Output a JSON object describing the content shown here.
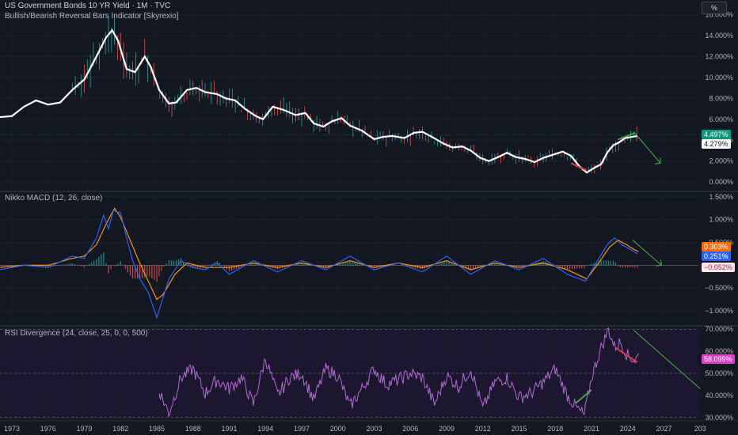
{
  "header": {
    "title": "US Government Bonds 10 YR Yield · 1M · TVC",
    "indicator": "Bullish/Bearish Reversal Bars Indicator [Skyrexio]",
    "scale_button": "%"
  },
  "x_axis": {
    "years": [
      "1973",
      "1976",
      "1979",
      "1982",
      "1985",
      "1988",
      "1991",
      "1994",
      "1997",
      "2000",
      "2003",
      "2006",
      "2009",
      "2012",
      "2015",
      "2018",
      "2021",
      "2024",
      "2027",
      "203"
    ]
  },
  "colors": {
    "background": "#131722",
    "separator": "#2a4a3a",
    "up": "#26a69a",
    "down": "#ef5350",
    "smooth_line": "#ffffff",
    "macd": "#2962ff",
    "signal": "#ff9800",
    "rsi": "#b36bd6",
    "green_trend": "#4caf50",
    "red_trend": "#f23645"
  },
  "chart_data": [
    {
      "type": "line",
      "title": "US Government Bonds 10 YR Yield · 1M · TVC",
      "subtitle": "Bullish/Bearish Reversal Bars Indicator [Skyrexio]",
      "unit": "%",
      "y_ticks": [
        "16.000%",
        "14.000%",
        "12.000%",
        "10.000%",
        "8.000%",
        "6.000%",
        "4.000%",
        "2.000%",
        "0.000%"
      ],
      "ylim": [
        -0.9,
        17.4
      ],
      "series": [
        {
          "x": [
            1972.0,
            1973.0,
            1974.0,
            1975.0,
            1976.0,
            1977.0,
            1978.0,
            1979.0,
            1980.0,
            1980.8,
            1981.3,
            1981.8,
            1982.5,
            1983.2,
            1984.0,
            1984.5,
            1985.2,
            1986.0,
            1986.6,
            1987.5,
            1988.3,
            1989.0,
            1990.0,
            1990.7,
            1991.5,
            1992.3,
            1993.2,
            1993.8,
            1994.6,
            1995.5,
            1996.5,
            1997.3,
            1998.0,
            1998.8,
            1999.5,
            2000.3,
            2001.0,
            2002.0,
            2003.0,
            2003.7,
            2004.5,
            2005.5,
            2006.3,
            2007.0,
            2007.8,
            2008.7,
            2009.5,
            2010.3,
            2011.0,
            2011.8,
            2012.5,
            2013.3,
            2014.0,
            2014.7,
            2015.5,
            2016.3,
            2017.0,
            2017.8,
            2018.6,
            2019.3,
            2020.0,
            2020.6,
            2021.3,
            2021.8,
            2022.3,
            2022.8,
            2023.3,
            2023.8,
            2024.3,
            2024.8
          ],
          "y": [
            6.2,
            6.3,
            7.2,
            7.8,
            7.4,
            7.6,
            8.8,
            9.8,
            12.0,
            13.8,
            14.5,
            13.5,
            10.8,
            10.5,
            12.0,
            11.0,
            8.8,
            7.5,
            7.6,
            8.8,
            9.0,
            8.6,
            8.4,
            8.0,
            7.8,
            7.0,
            6.3,
            6.0,
            7.2,
            6.9,
            6.4,
            6.6,
            5.6,
            5.3,
            5.8,
            6.1,
            5.4,
            4.9,
            4.1,
            4.3,
            4.4,
            4.2,
            4.7,
            4.8,
            4.3,
            3.7,
            3.3,
            3.4,
            3.0,
            2.3,
            2.0,
            2.4,
            2.8,
            2.4,
            2.2,
            1.9,
            2.3,
            2.6,
            2.9,
            2.5,
            1.5,
            0.9,
            1.4,
            1.7,
            2.8,
            3.5,
            3.8,
            4.2,
            4.3,
            4.4
          ]
        }
      ],
      "annotations": [
        {
          "type": "trendline",
          "color": "green",
          "x": [
            2023.2,
            2024.5
          ],
          "y": [
            4.05,
            4.65
          ]
        },
        {
          "type": "trendline",
          "color": "red",
          "x": [
            2019.3,
            2020.6
          ],
          "y": [
            1.8,
            1.1
          ]
        },
        {
          "type": "projection-arrow",
          "x": [
            2024.5,
            2026.7
          ],
          "y": [
            4.8,
            1.8
          ]
        }
      ],
      "last_values": [
        "4.497%",
        "4.279%"
      ]
    },
    {
      "type": "line",
      "title": "Nikko MACD (12, 26, close)",
      "y_ticks": [
        "1.500%",
        "1.000%",
        "0.500%",
        "0.000%",
        "−0.500%",
        "−1.000%"
      ],
      "ylim": [
        -1.33,
        1.62
      ],
      "series": [
        {
          "x": [
            1972,
            1974,
            1976,
            1978,
            1979,
            1980,
            1980.6,
            1981,
            1981.4,
            1982,
            1982.5,
            1983,
            1983.6,
            1984.3,
            1985,
            1986,
            1987,
            1988,
            1989,
            1990,
            1991,
            1993,
            1995,
            1997,
            1999,
            2001,
            2003,
            2005,
            2007,
            2009,
            2011,
            2013,
            2015,
            2017,
            2019,
            2020.5,
            2021.5,
            2022.3,
            2022.9,
            2023.5,
            2024.2,
            2024.8
          ],
          "y": [
            -0.1,
            0.0,
            -0.05,
            0.2,
            0.15,
            0.6,
            1.1,
            0.8,
            1.2,
            1.15,
            0.6,
            0.1,
            -0.3,
            -0.6,
            -1.15,
            -0.3,
            0.1,
            -0.05,
            -0.1,
            0.05,
            -0.2,
            0.1,
            -0.15,
            0.1,
            -0.1,
            0.2,
            -0.1,
            0.05,
            -0.15,
            0.2,
            -0.2,
            0.1,
            -0.1,
            0.15,
            -0.2,
            -0.35,
            0.1,
            0.45,
            0.6,
            0.45,
            0.35,
            0.25
          ]
        },
        {
          "x": [
            1972,
            1974,
            1976,
            1978,
            1979,
            1980,
            1980.8,
            1981.5,
            1982,
            1982.8,
            1983.5,
            1984.3,
            1985,
            1985.5,
            1986.5,
            1987.5,
            1989,
            1991,
            1993,
            1995,
            1997,
            1999,
            2001,
            2003,
            2005,
            2007,
            2009,
            2011,
            2013,
            2015,
            2017,
            2019,
            2020.6,
            2021.6,
            2022.5,
            2023.2,
            2023.9,
            2024.5,
            2024.9
          ],
          "y": [
            -0.05,
            0.0,
            0.0,
            0.15,
            0.2,
            0.45,
            0.9,
            1.25,
            1.05,
            0.55,
            0.1,
            -0.35,
            -0.75,
            -0.65,
            -0.2,
            0.05,
            -0.05,
            -0.05,
            0.05,
            -0.05,
            0.05,
            -0.05,
            0.1,
            -0.05,
            0.05,
            -0.05,
            0.1,
            -0.1,
            0.05,
            -0.05,
            0.05,
            -0.1,
            -0.3,
            0.05,
            0.4,
            0.55,
            0.45,
            0.35,
            0.3
          ]
        }
      ],
      "annotations": [
        {
          "type": "projection-arrow",
          "x": [
            2024.4,
            2026.8
          ],
          "y": [
            0.55,
            0.0
          ]
        }
      ],
      "last_values": [
        "0.303%",
        "0.251%",
        "−0.052%"
      ]
    },
    {
      "type": "line",
      "title": "RSI Divergence (24, close, 25, 0, 0, 500)",
      "y_ticks": [
        "70.000%",
        "60.000%",
        "50.000%",
        "40.000%",
        "30.000%"
      ],
      "ylim": [
        28.5,
        71.5
      ],
      "series": [
        {
          "x": [
            1985.2,
            1986.0,
            1987.0,
            1988.0,
            1989.0,
            1990.0,
            1991.0,
            1992.0,
            1993.0,
            1994.0,
            1995.0,
            1996.0,
            1997.0,
            1998.0,
            1999.0,
            2000.0,
            2001.0,
            2002.0,
            2003.0,
            2004.0,
            2005.0,
            2006.0,
            2007.0,
            2008.0,
            2009.0,
            2010.0,
            2011.0,
            2012.0,
            2013.0,
            2014.0,
            2015.0,
            2016.0,
            2017.0,
            2018.0,
            2019.0,
            2019.8,
            2020.4,
            2021.0,
            2021.7,
            2022.4,
            2022.9,
            2023.4,
            2024.0,
            2024.6,
            2024.9
          ],
          "y": [
            42,
            32,
            48,
            52,
            41,
            47,
            43,
            48,
            36,
            57,
            40,
            48,
            50,
            38,
            52,
            49,
            35,
            43,
            52,
            45,
            47,
            50,
            48,
            36,
            49,
            44,
            52,
            34,
            46,
            48,
            39,
            41,
            46,
            52,
            40,
            34,
            31,
            48,
            60,
            70,
            62,
            64,
            58,
            56,
            58
          ]
        }
      ],
      "annotations": [
        {
          "type": "trendline",
          "color": "green",
          "x": [
            2019.7,
            2021.0
          ],
          "y": [
            36.5,
            42.5
          ]
        },
        {
          "type": "trendline",
          "color": "red",
          "x": [
            2023.0,
            2024.8
          ],
          "y": [
            61.5,
            55.0
          ]
        },
        {
          "type": "projection-arrow",
          "x": [
            2024.5,
            2030.0
          ],
          "y": [
            69.5,
            43.0
          ]
        }
      ],
      "last_values": [
        "58.099%"
      ]
    }
  ]
}
